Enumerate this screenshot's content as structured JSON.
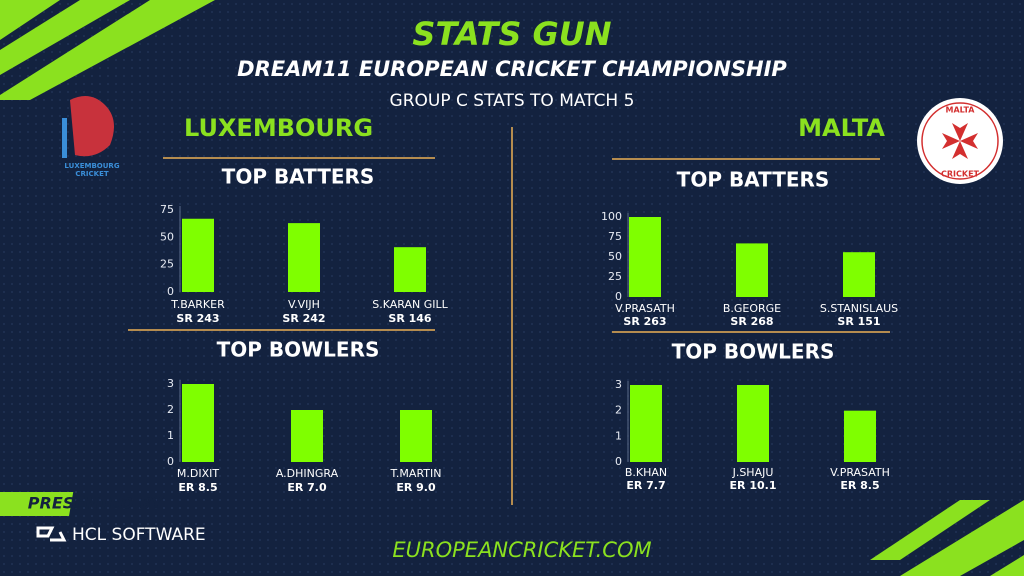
{
  "header": {
    "brand": "STATS GUN",
    "event": "DREAM11 EUROPEAN CRICKET CHAMPIONSHIP",
    "subtitle": "GROUP C STATS TO MATCH 5"
  },
  "teams": [
    {
      "name": "LUXEMBOURG",
      "logo_text": [
        "LUXEMBOURG",
        "CRICKET"
      ]
    },
    {
      "name": "MALTA",
      "logo_text": [
        "MALTA",
        "CRICKET"
      ]
    }
  ],
  "footer": {
    "presented_by": "PRESENTED BY",
    "sponsor": "HCL SOFTWARE",
    "website": "EUROPEANCRICKET.COM"
  },
  "chart_data": [
    {
      "type": "bar",
      "title": "TOP BATTERS",
      "color": "#7fff00",
      "categories": [
        "T.BARKER",
        "V.VIJH",
        "S.KARAN GILL"
      ],
      "sublabels": [
        "SR 243",
        "SR 242",
        "SR 146"
      ],
      "values": [
        67,
        63,
        41
      ],
      "ylim": [
        0,
        75
      ],
      "yticks": [
        0,
        25,
        50,
        75
      ],
      "grid": false
    },
    {
      "type": "bar",
      "title": "TOP BOWLERS",
      "color": "#7fff00",
      "categories": [
        "M.DIXIT",
        "A.DHINGRA",
        "T.MARTIN"
      ],
      "sublabels": [
        "ER 8.5",
        "ER 7.0",
        "ER 9.0"
      ],
      "values": [
        3,
        2,
        2
      ],
      "ylim": [
        0,
        3
      ],
      "yticks": [
        0,
        1,
        2,
        3
      ],
      "grid": false
    },
    {
      "type": "bar",
      "title": "TOP BATTERS",
      "color": "#7fff00",
      "categories": [
        "V.PRASATH",
        "B.GEORGE",
        "S.STANISLAUS"
      ],
      "sublabels": [
        "SR 263",
        "SR 268",
        "SR 151"
      ],
      "values": [
        100,
        67,
        56
      ],
      "ylim": [
        0,
        100
      ],
      "yticks": [
        0,
        25,
        50,
        75,
        100
      ],
      "grid": false
    },
    {
      "type": "bar",
      "title": "TOP BOWLERS",
      "color": "#7fff00",
      "categories": [
        "B.KHAN",
        "J.SHAJU",
        "V.PRASATH"
      ],
      "sublabels": [
        "ER 7.7",
        "ER 10.1",
        "ER 8.5"
      ],
      "values": [
        3,
        3,
        2
      ],
      "ylim": [
        0,
        3
      ],
      "yticks": [
        0,
        1,
        2,
        3
      ],
      "grid": false
    }
  ]
}
